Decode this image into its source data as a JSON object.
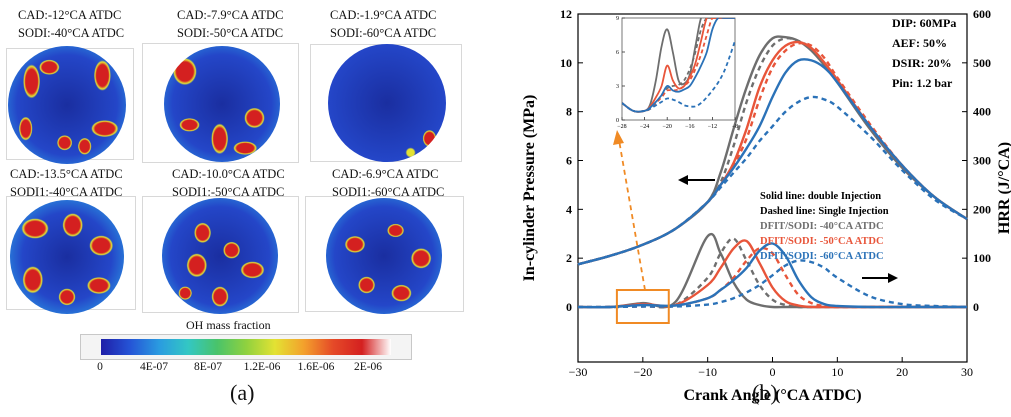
{
  "panel_a": {
    "caption": "(a)",
    "cells": [
      {
        "line1": "CAD:-12°CA ATDC",
        "line2": "SODI:-40°CA ATDC"
      },
      {
        "line1": "CAD:-7.9°CA ATDC",
        "line2": "SODI:-50°CA ATDC"
      },
      {
        "line1": "CAD:-1.9°CA ATDC",
        "line2": "SODI:-60°CA ATDC"
      },
      {
        "line1": "CAD:-13.5°CA ATDC",
        "line2": "SODI1:-40°CA ATDC"
      },
      {
        "line1": "CAD:-10.0°CA ATDC",
        "line2": "SODI1:-50°CA ATDC"
      },
      {
        "line1": "CAD:-6.9°CA ATDC",
        "line2": "SODI1:-60°CA ATDC"
      }
    ],
    "colorbar": {
      "title": "OH mass fraction",
      "ticks": [
        "0",
        "4E-07",
        "8E-07",
        "1.2E-06",
        "1.6E-06",
        "2E-06"
      ],
      "colors": [
        "#1f1fa8",
        "#2554d6",
        "#2a9be0",
        "#33c7c4",
        "#49c36a",
        "#8fd13f",
        "#e3e233",
        "#f3a02c",
        "#e54a28",
        "#d42020",
        "#ffffff"
      ]
    }
  },
  "panel_b": {
    "caption": "(b)",
    "chart_data": {
      "type": "line",
      "xlabel": "Crank Angle (°CA ATDC)",
      "ylabel": "In-cylinder Pressure (MPa)",
      "y2label": "HRR (J/°CA)",
      "xlim": [
        -30,
        30
      ],
      "ylim": [
        0,
        12
      ],
      "y2lim": [
        0,
        600
      ],
      "xticks": [
        -30,
        -20,
        -10,
        0,
        10,
        20,
        30
      ],
      "yticks": [
        0,
        2,
        4,
        6,
        8,
        10,
        12
      ],
      "y2ticks": [
        0,
        100,
        200,
        300,
        400,
        500,
        600
      ],
      "grid": false,
      "params": [
        "DIP: 60MPa",
        "AEF: 50%",
        "DSIR: 20%",
        "Pin: 1.2 bar"
      ],
      "legend": [
        "Solid line: double Injection",
        "Dashed line: Single Injection",
        "DFIT/SODI: -40°CA ATDC",
        "DFIT/SODI: -50°CA ATDC",
        "DFIT/SODI: -60°CA ATDC"
      ],
      "colors": {
        "minus40": "#6e6e6e",
        "minus50": "#e8553a",
        "minus60": "#2b72b8",
        "arrow": "#f08a24"
      },
      "x": [
        -30,
        -25,
        -20,
        -15,
        -10,
        -8,
        -6,
        -4,
        -2,
        0,
        2,
        4,
        6,
        8,
        10,
        15,
        20,
        25,
        30
      ],
      "pressure_series": [
        {
          "case": "-40",
          "style": "solid",
          "values": [
            1.75,
            2.1,
            2.55,
            3.2,
            4.3,
            5.5,
            7.3,
            9.0,
            10.3,
            11.0,
            11.05,
            10.9,
            10.5,
            9.9,
            9.2,
            7.3,
            5.7,
            4.5,
            3.6
          ]
        },
        {
          "case": "-40",
          "style": "dashed",
          "values": [
            1.75,
            2.1,
            2.55,
            3.2,
            4.3,
            5.1,
            6.6,
            8.4,
            9.8,
            10.7,
            11.0,
            10.9,
            10.6,
            10.0,
            9.3,
            7.4,
            5.8,
            4.5,
            3.6
          ]
        },
        {
          "case": "-50",
          "style": "solid",
          "values": [
            1.75,
            2.1,
            2.55,
            3.2,
            4.3,
            5.0,
            5.9,
            7.3,
            9.0,
            10.1,
            10.7,
            10.85,
            10.6,
            10.0,
            9.3,
            7.4,
            5.8,
            4.5,
            3.6
          ]
        },
        {
          "case": "-50",
          "style": "dashed",
          "values": [
            1.75,
            2.1,
            2.55,
            3.2,
            4.3,
            5.0,
            5.8,
            6.9,
            8.5,
            9.8,
            10.5,
            10.8,
            10.7,
            10.2,
            9.4,
            7.5,
            5.8,
            4.5,
            3.6
          ]
        },
        {
          "case": "-60",
          "style": "solid",
          "values": [
            1.75,
            2.1,
            2.55,
            3.2,
            4.3,
            5.0,
            5.7,
            6.5,
            7.4,
            8.6,
            9.6,
            10.1,
            10.1,
            9.8,
            9.2,
            7.4,
            5.8,
            4.5,
            3.6
          ]
        },
        {
          "case": "-60",
          "style": "dashed",
          "values": [
            1.75,
            2.1,
            2.55,
            3.2,
            4.3,
            4.9,
            5.5,
            6.1,
            6.8,
            7.4,
            8.0,
            8.4,
            8.6,
            8.5,
            8.2,
            7.0,
            5.6,
            4.4,
            3.6
          ]
        }
      ],
      "hrr_series": [
        {
          "case": "-40",
          "style": "solid",
          "values": [
            0,
            0,
            8,
            10,
            145,
            110,
            50,
            15,
            4,
            0,
            0,
            0,
            0,
            0,
            0,
            0,
            0,
            0,
            0
          ]
        },
        {
          "case": "-40",
          "style": "dashed",
          "values": [
            0,
            0,
            2,
            4,
            60,
            110,
            140,
            95,
            45,
            15,
            4,
            0,
            0,
            0,
            0,
            0,
            0,
            0,
            0
          ]
        },
        {
          "case": "-50",
          "style": "solid",
          "values": [
            0,
            0,
            6,
            4,
            45,
            80,
            120,
            135,
            90,
            40,
            12,
            3,
            0,
            0,
            0,
            0,
            0,
            0,
            0
          ]
        },
        {
          "case": "-50",
          "style": "dashed",
          "values": [
            0,
            0,
            1,
            2,
            18,
            35,
            60,
            95,
            120,
            110,
            65,
            25,
            8,
            2,
            0,
            0,
            0,
            0,
            0
          ]
        },
        {
          "case": "-60",
          "style": "solid",
          "values": [
            0,
            0,
            4,
            3,
            18,
            35,
            55,
            80,
            115,
            130,
            105,
            55,
            20,
            6,
            2,
            0,
            0,
            0,
            0
          ]
        },
        {
          "case": "-60",
          "style": "dashed",
          "values": [
            0,
            0,
            1,
            1,
            5,
            10,
            18,
            30,
            45,
            65,
            85,
            95,
            92,
            80,
            60,
            22,
            6,
            2,
            0
          ]
        }
      ],
      "inset": {
        "xlim": [
          -28,
          -8
        ],
        "ylim": [
          0,
          9
        ],
        "xticks": [
          -28,
          -24,
          -20,
          -16,
          -12,
          -8
        ],
        "yticks": [
          0,
          3,
          6,
          9
        ],
        "x": [
          -28,
          -26,
          -24,
          -23,
          -22,
          -21,
          -20,
          -19,
          -18,
          -17,
          -16,
          -15,
          -14,
          -13,
          -12,
          -11,
          -10,
          -9,
          -8
        ],
        "series": [
          {
            "case": "-40",
            "style": "solid",
            "values": [
              1.5,
              0.8,
              0.8,
              1.4,
              3.5,
              6.5,
              8.0,
              6.0,
              3.5,
              3.2,
              4.0,
              6.5,
              9.0,
              9.0,
              9.0,
              9.0,
              9.0,
              9.0,
              9.0
            ]
          },
          {
            "case": "-40",
            "style": "dashed",
            "values": [
              1.5,
              0.8,
              0.8,
              1.0,
              1.5,
              2.2,
              2.8,
              3.0,
              3.1,
              3.5,
              4.5,
              6.0,
              8.0,
              9.0,
              9.0,
              9.0,
              9.0,
              9.0,
              9.0
            ]
          },
          {
            "case": "-50",
            "style": "solid",
            "values": [
              1.5,
              0.8,
              0.8,
              1.2,
              2.0,
              3.0,
              4.8,
              3.5,
              2.8,
              3.0,
              3.8,
              5.0,
              7.0,
              9.0,
              9.0,
              9.0,
              9.0,
              9.0,
              9.0
            ]
          },
          {
            "case": "-50",
            "style": "dashed",
            "values": [
              1.5,
              0.8,
              0.8,
              1.0,
              1.5,
              2.0,
              2.6,
              2.6,
              2.7,
              3.0,
              3.5,
              4.5,
              5.8,
              7.5,
              9.0,
              9.0,
              9.0,
              9.0,
              9.0
            ]
          },
          {
            "case": "-60",
            "style": "solid",
            "values": [
              1.5,
              0.8,
              0.8,
              1.1,
              1.6,
              2.2,
              3.0,
              2.6,
              2.5,
              2.7,
              3.0,
              3.8,
              4.8,
              6.0,
              8.0,
              9.0,
              9.0,
              9.0,
              9.0
            ]
          },
          {
            "case": "-60",
            "style": "dashed",
            "values": [
              1.5,
              0.8,
              0.8,
              1.0,
              1.3,
              1.6,
              1.9,
              1.8,
              1.6,
              1.3,
              1.2,
              1.2,
              1.5,
              2.0,
              2.6,
              3.3,
              4.2,
              5.5,
              7.0
            ]
          }
        ]
      }
    }
  }
}
